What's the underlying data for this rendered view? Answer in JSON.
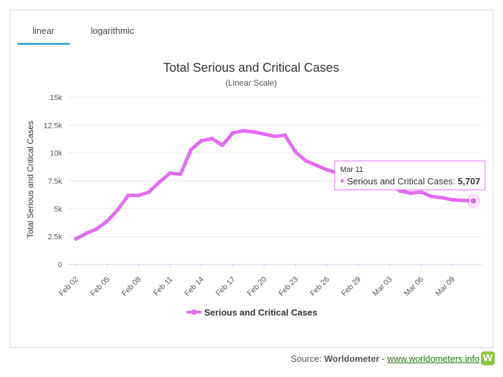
{
  "tabs": [
    {
      "label": "linear",
      "active": true
    },
    {
      "label": "logarithmic",
      "active": false
    }
  ],
  "source": {
    "prefix": "Source: ",
    "name": "Worldometer",
    "separator": " - ",
    "link_text": "www.worldometers.info",
    "logo_letter": "W"
  },
  "colors": {
    "series": "#e36af3",
    "tab_active": "#3fa9d9",
    "logo": "#8cc63f"
  },
  "chart_data": {
    "type": "line",
    "title": "Total Serious and Critical Cases",
    "subtitle": "(Linear Scale)",
    "ylabel": "Total Serious and Critical Cases",
    "xlabel": "",
    "ylim": [
      0,
      15000
    ],
    "yticks": [
      0,
      2500,
      5000,
      7500,
      10000,
      12500,
      15000
    ],
    "ytick_labels": [
      "0",
      "2.5k",
      "5k",
      "7.5k",
      "10k",
      "12.5k",
      "15k"
    ],
    "xtick_labels": [
      "Feb 02",
      "Feb 05",
      "Feb 08",
      "Feb 11",
      "Feb 14",
      "Feb 17",
      "Feb 20",
      "Feb 23",
      "Feb 26",
      "Feb 29",
      "Mar 03",
      "Mar 06",
      "Mar 09"
    ],
    "x": [
      "Feb 02",
      "Feb 03",
      "Feb 04",
      "Feb 05",
      "Feb 06",
      "Feb 07",
      "Feb 08",
      "Feb 09",
      "Feb 10",
      "Feb 11",
      "Feb 12",
      "Feb 13",
      "Feb 14",
      "Feb 15",
      "Feb 16",
      "Feb 17",
      "Feb 18",
      "Feb 19",
      "Feb 20",
      "Feb 21",
      "Feb 22",
      "Feb 23",
      "Feb 24",
      "Feb 25",
      "Feb 26",
      "Feb 27",
      "Feb 28",
      "Feb 29",
      "Mar 01",
      "Mar 02",
      "Mar 03",
      "Mar 04",
      "Mar 05",
      "Mar 06",
      "Mar 07",
      "Mar 08",
      "Mar 09",
      "Mar 10",
      "Mar 11"
    ],
    "series": [
      {
        "name": "Serious and Critical Cases",
        "values": [
          2300,
          2800,
          3200,
          3900,
          4900,
          6200,
          6200,
          6500,
          7400,
          8200,
          8100,
          10300,
          11100,
          11300,
          10700,
          11800,
          12000,
          11900,
          11700,
          11500,
          11600,
          10100,
          9300,
          8900,
          8500,
          8200,
          7800,
          7700,
          7500,
          7400,
          7200,
          6600,
          6400,
          6500,
          6100,
          6000,
          5800,
          5750,
          5707
        ]
      }
    ],
    "legend": "bottom-center",
    "grid": true,
    "tooltip": {
      "date": "Mar 11",
      "label": "Serious and Critical Cases: ",
      "value": "5,707"
    }
  }
}
